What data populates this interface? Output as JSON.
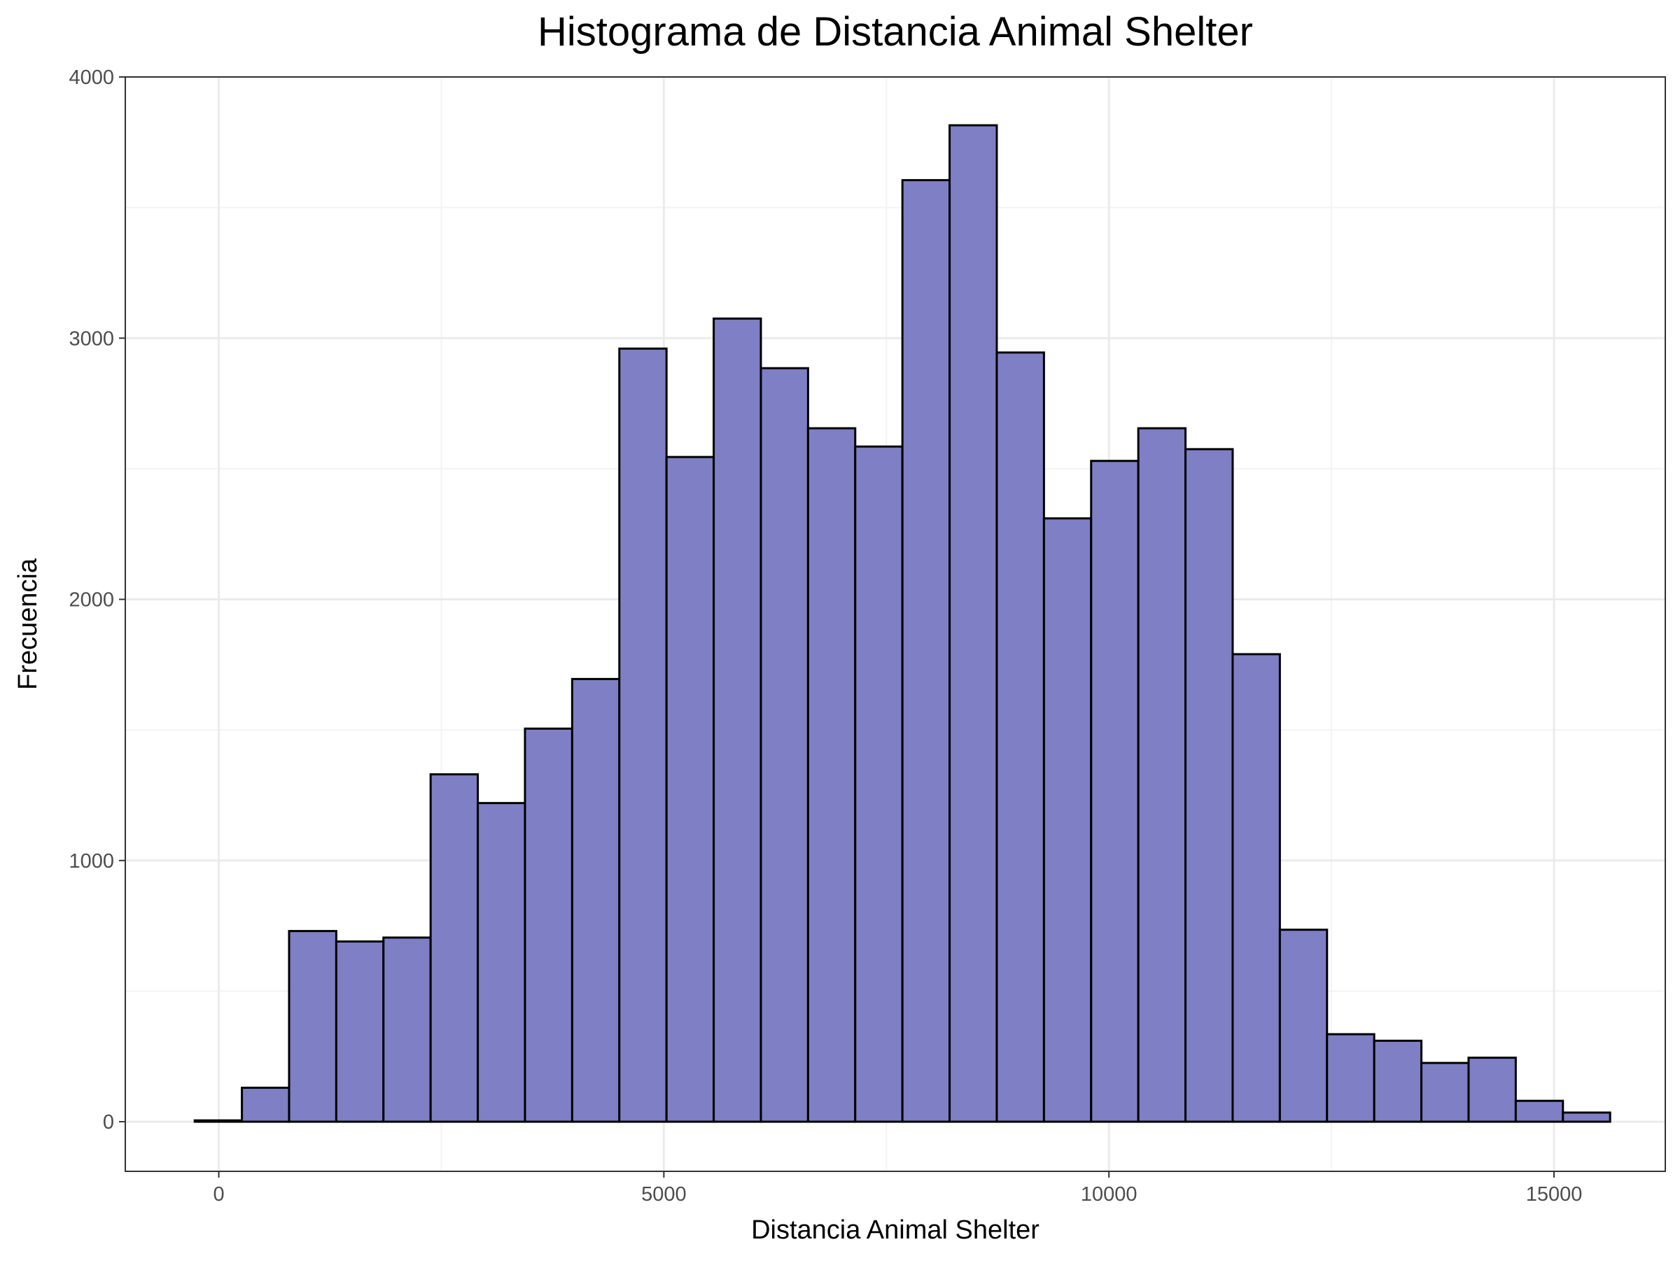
{
  "chart_data": {
    "type": "bar",
    "title": "Histograma de Distancia Animal Shelter",
    "xlabel": "Distancia Animal Shelter",
    "ylabel": "Frecuencia",
    "xlim": [
      -1050,
      16250
    ],
    "ylim": [
      -190,
      4000
    ],
    "x_ticks": [
      0,
      5000,
      10000,
      15000
    ],
    "x_tick_labels": [
      "0",
      "5000",
      "10000",
      "15000"
    ],
    "y_ticks": [
      0,
      1000,
      2000,
      3000,
      4000
    ],
    "y_tick_labels": [
      "0",
      "1000",
      "2000",
      "3000",
      "4000"
    ],
    "x_minor_ticks": [
      2500,
      7500,
      12500
    ],
    "y_minor_ticks": [
      500,
      1500,
      2500,
      3500
    ],
    "grid": true,
    "bin_width": 530,
    "bins": [
      {
        "x0": -270,
        "x1": 260,
        "count": 5
      },
      {
        "x0": 260,
        "x1": 790,
        "count": 130
      },
      {
        "x0": 790,
        "x1": 1320,
        "count": 730
      },
      {
        "x0": 1320,
        "x1": 1850,
        "count": 690
      },
      {
        "x0": 1850,
        "x1": 2380,
        "count": 705
      },
      {
        "x0": 2380,
        "x1": 2910,
        "count": 1330
      },
      {
        "x0": 2910,
        "x1": 3440,
        "count": 1220
      },
      {
        "x0": 3440,
        "x1": 3970,
        "count": 1505
      },
      {
        "x0": 3970,
        "x1": 4500,
        "count": 1695
      },
      {
        "x0": 4500,
        "x1": 5030,
        "count": 2960
      },
      {
        "x0": 5030,
        "x1": 5560,
        "count": 2545
      },
      {
        "x0": 5560,
        "x1": 6090,
        "count": 3075
      },
      {
        "x0": 6090,
        "x1": 6620,
        "count": 2885
      },
      {
        "x0": 6620,
        "x1": 7150,
        "count": 2655
      },
      {
        "x0": 7150,
        "x1": 7680,
        "count": 2585
      },
      {
        "x0": 7680,
        "x1": 8210,
        "count": 3605
      },
      {
        "x0": 8210,
        "x1": 8740,
        "count": 3815
      },
      {
        "x0": 8740,
        "x1": 9270,
        "count": 2945
      },
      {
        "x0": 9270,
        "x1": 9800,
        "count": 2310
      },
      {
        "x0": 9800,
        "x1": 10330,
        "count": 2530
      },
      {
        "x0": 10330,
        "x1": 10860,
        "count": 2655
      },
      {
        "x0": 10860,
        "x1": 11390,
        "count": 2575
      },
      {
        "x0": 11390,
        "x1": 11920,
        "count": 1790
      },
      {
        "x0": 11920,
        "x1": 12450,
        "count": 735
      },
      {
        "x0": 12450,
        "x1": 12980,
        "count": 335
      },
      {
        "x0": 12980,
        "x1": 13510,
        "count": 310
      },
      {
        "x0": 13510,
        "x1": 14040,
        "count": 225
      },
      {
        "x0": 14040,
        "x1": 14570,
        "count": 245
      },
      {
        "x0": 14570,
        "x1": 15100,
        "count": 80
      },
      {
        "x0": 15100,
        "x1": 15630,
        "count": 35
      }
    ],
    "colors": {
      "bar_fill": "#7F7FC6",
      "bar_stroke": "#000000",
      "grid_major": "#EBEBEB",
      "grid_minor": "#F3F3F3",
      "panel_border": "#333333",
      "tick_label": "#4D4D4D",
      "text": "#000000"
    }
  }
}
